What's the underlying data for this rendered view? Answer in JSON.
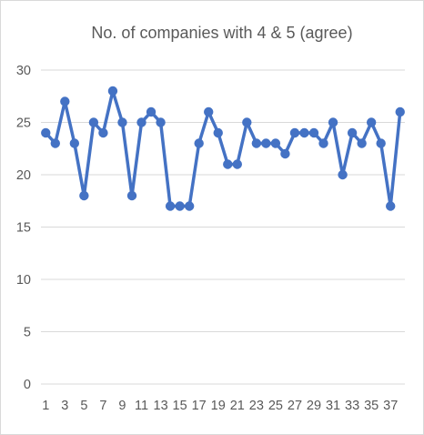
{
  "chart_data": {
    "type": "line",
    "title": "No. of companies with 4 & 5 (agree)",
    "x": [
      1,
      2,
      3,
      4,
      5,
      6,
      7,
      8,
      9,
      10,
      11,
      12,
      13,
      14,
      15,
      16,
      17,
      18,
      19,
      20,
      21,
      22,
      23,
      24,
      25,
      26,
      27,
      28,
      29,
      30,
      31,
      32,
      33,
      34,
      35,
      36,
      37,
      38
    ],
    "values": [
      24,
      23,
      27,
      23,
      18,
      25,
      24,
      28,
      25,
      18,
      25,
      26,
      25,
      17,
      17,
      17,
      23,
      26,
      24,
      21,
      21,
      25,
      23,
      23,
      23,
      22,
      24,
      24,
      24,
      23,
      25,
      20,
      24,
      23,
      25,
      23,
      17,
      26
    ],
    "x_tick_labels": [
      "1",
      "3",
      "5",
      "7",
      "9",
      "11",
      "13",
      "15",
      "17",
      "19",
      "21",
      "23",
      "25",
      "27",
      "29",
      "31",
      "33",
      "35",
      "37"
    ],
    "y_ticks": [
      0,
      5,
      10,
      15,
      20,
      25,
      30
    ],
    "ylim": [
      0,
      30
    ],
    "grid": "horizontal",
    "legend": "none",
    "series_color": "#4472C4",
    "grid_color": "#d9d9d9"
  }
}
